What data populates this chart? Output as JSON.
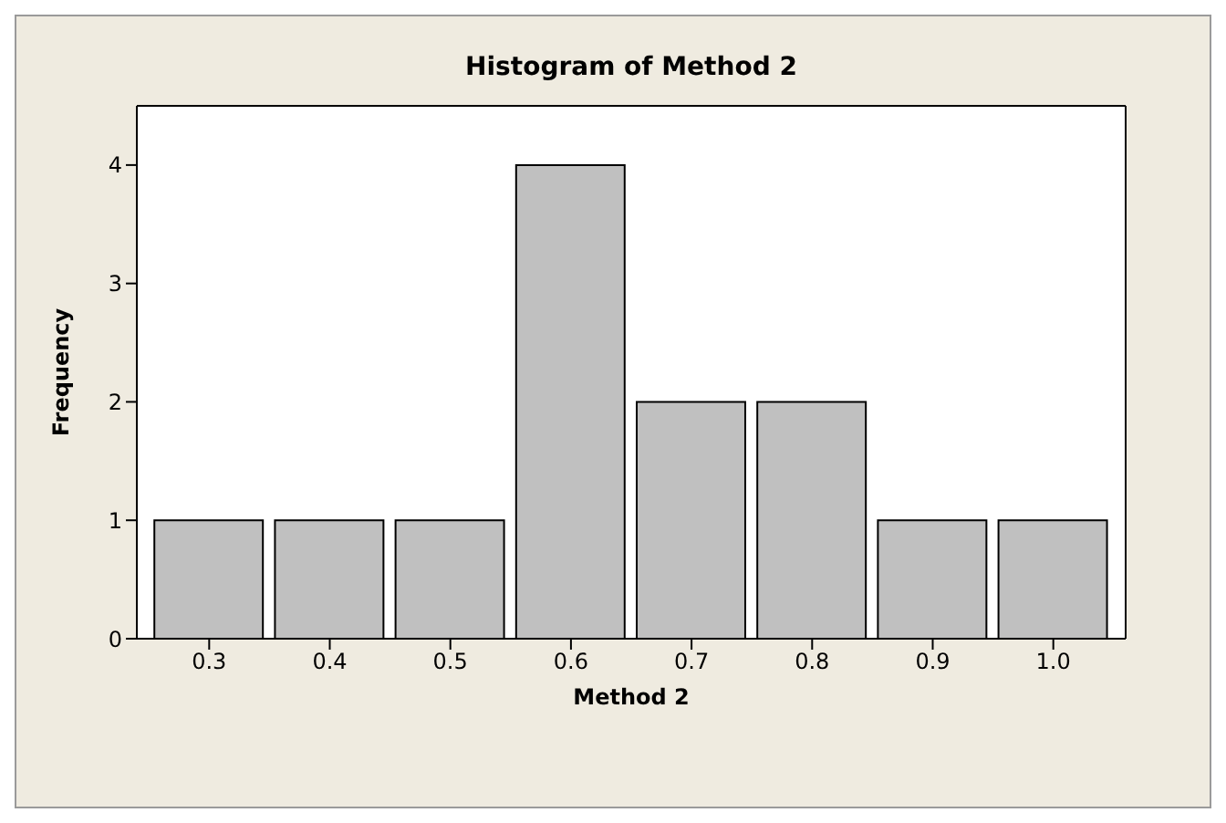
{
  "chart_data": {
    "type": "histogram",
    "title": "Histogram of Method 2",
    "xlabel": "Method 2",
    "ylabel": "Frequency",
    "bins": [
      0.25,
      0.35,
      0.45,
      0.55,
      0.65,
      0.75,
      0.85,
      0.95,
      1.05
    ],
    "values": [
      1,
      1,
      1,
      4,
      2,
      2,
      1,
      1
    ],
    "color": "#c0c0c0",
    "xlim": [
      0.24,
      1.06
    ],
    "xticks": [
      {
        "value": 0.3,
        "label": "0.3"
      },
      {
        "value": 0.4,
        "label": "0.4"
      },
      {
        "value": 0.5,
        "label": "0.5"
      },
      {
        "value": 0.6,
        "label": "0.6"
      },
      {
        "value": 0.7,
        "label": "0.7"
      },
      {
        "value": 0.8,
        "label": "0.8"
      },
      {
        "value": 0.9,
        "label": "0.9"
      },
      {
        "value": 1.0,
        "label": "1.0"
      }
    ],
    "ylim": [
      0,
      4.5
    ],
    "yticks": [
      0,
      1,
      2,
      3,
      4
    ],
    "grid": false
  }
}
